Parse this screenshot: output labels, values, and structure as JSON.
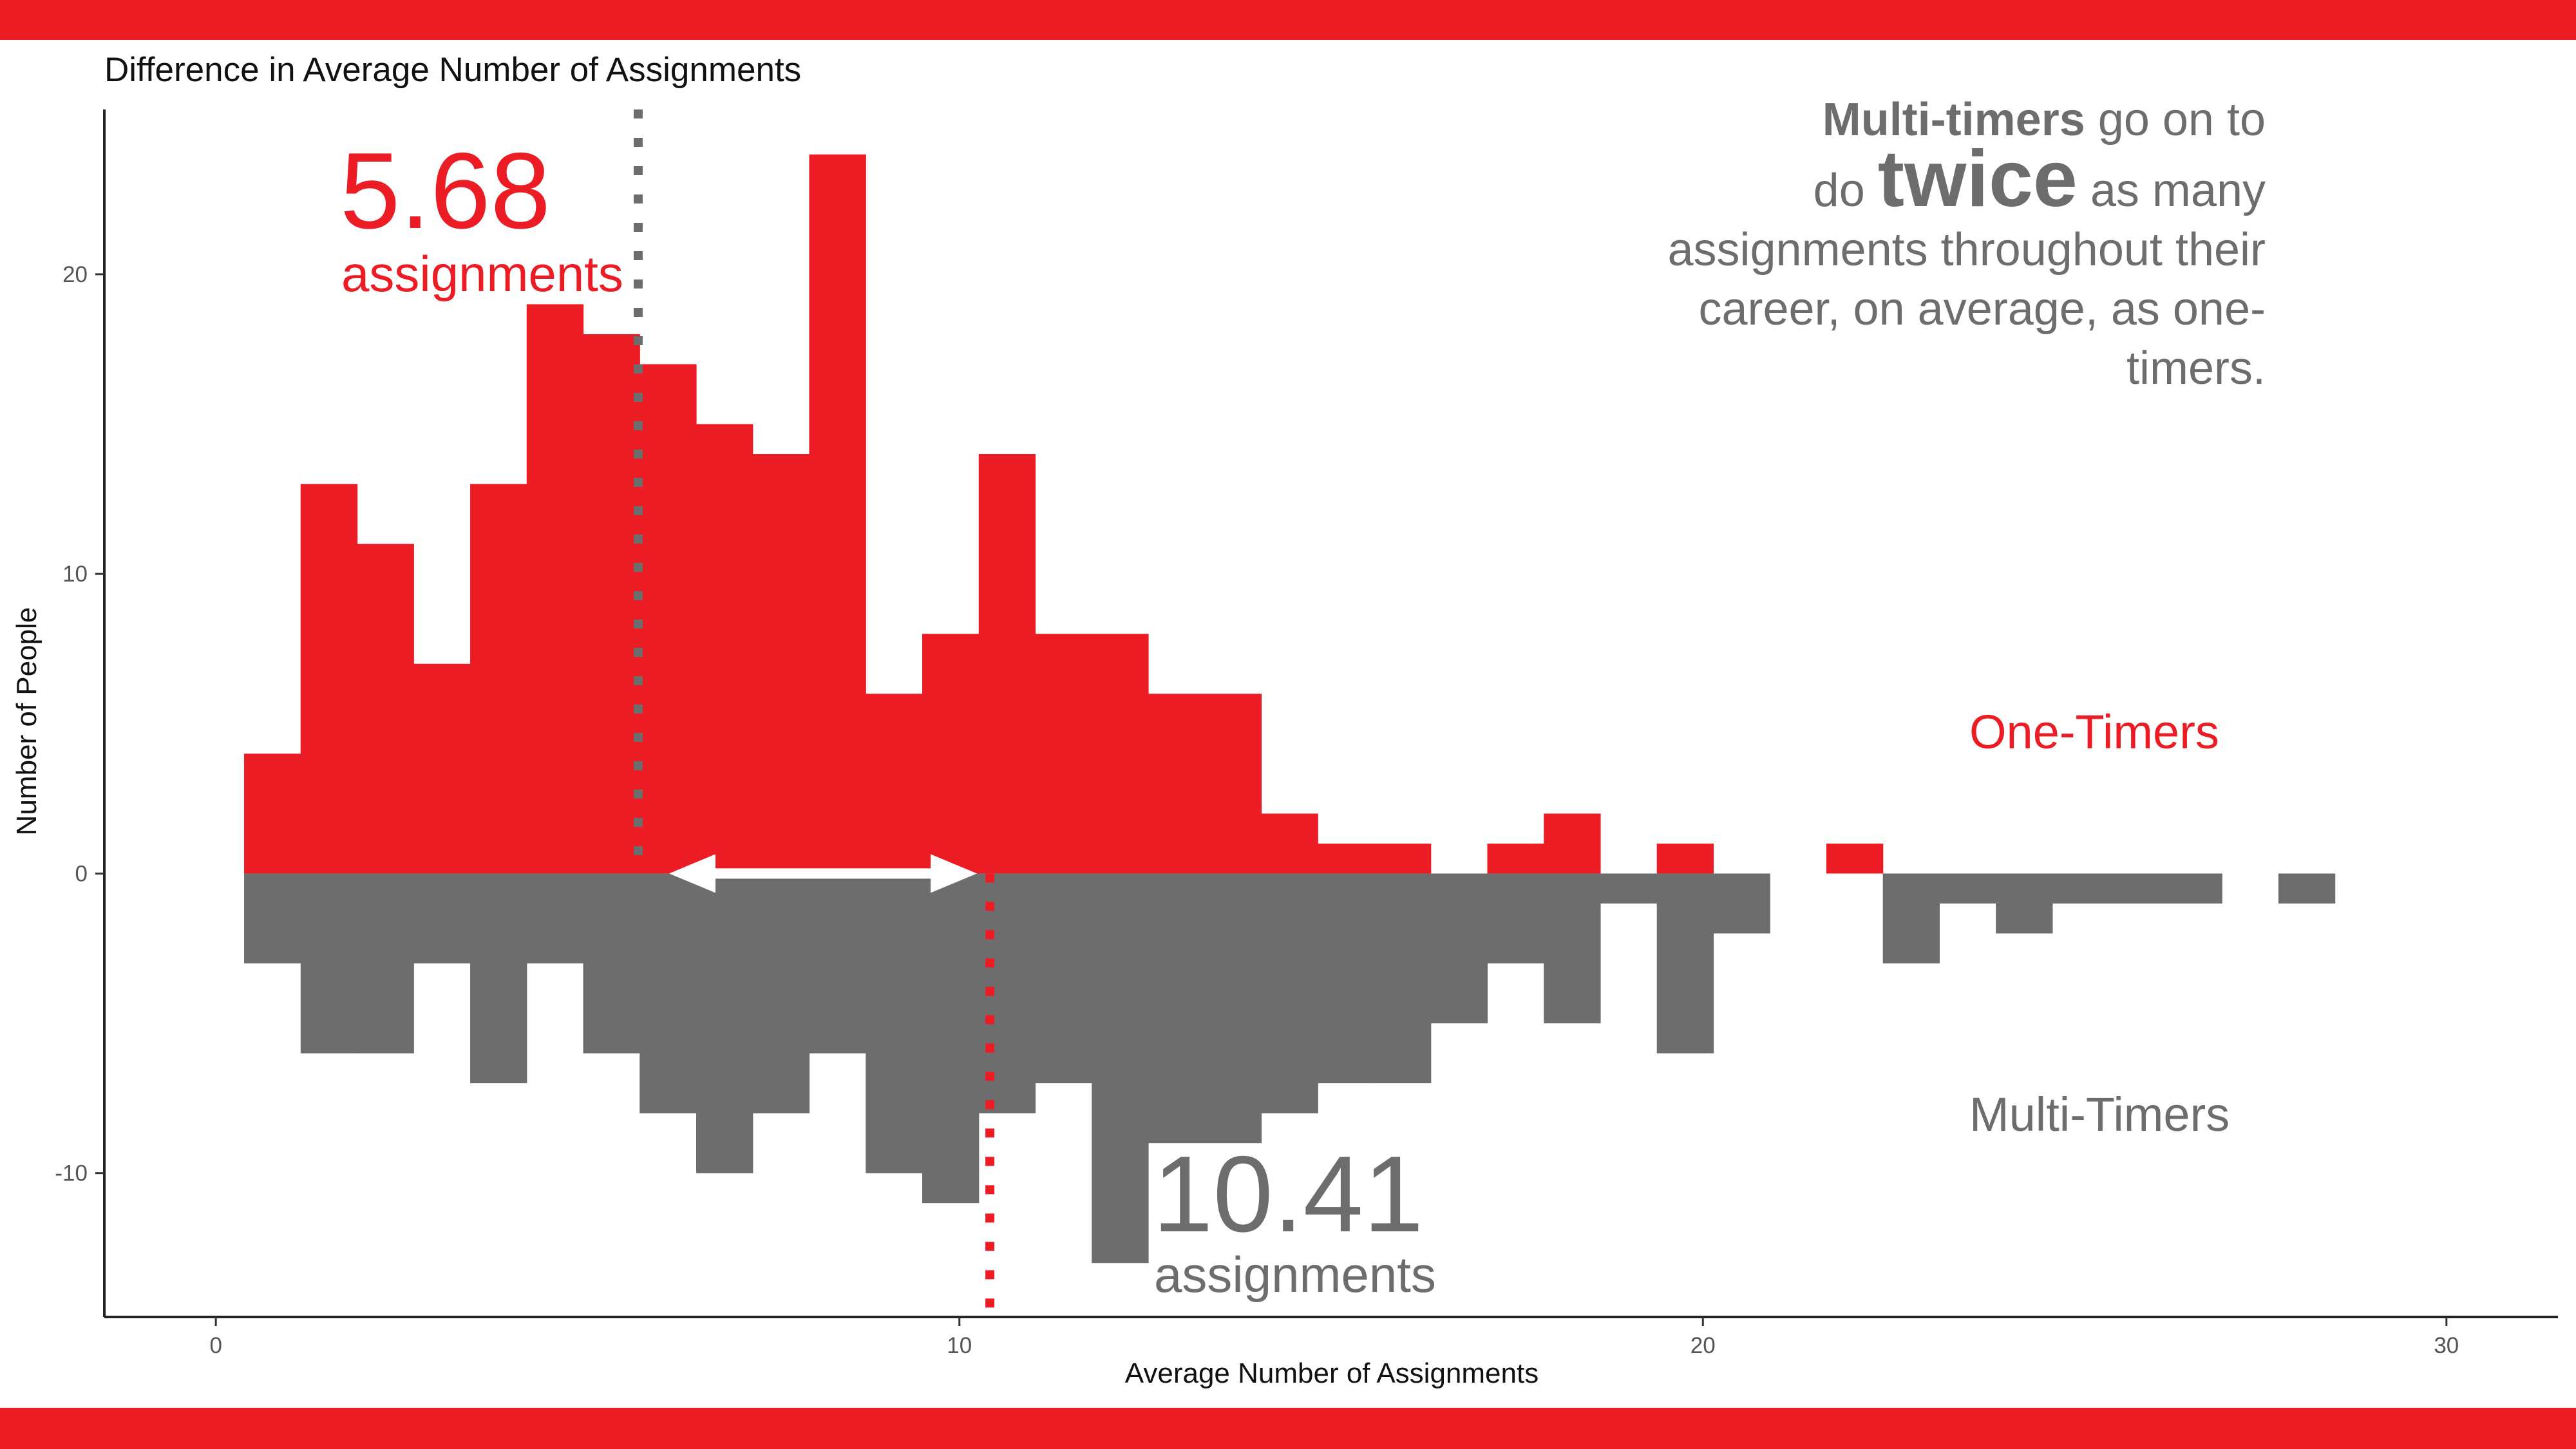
{
  "chart_data": {
    "type": "bar",
    "title": "Difference in Average Number of Assignments",
    "xlabel": "Average Number of Assignments",
    "ylabel": "Number of People",
    "xlim": [
      -1.5,
      31.5
    ],
    "ylim": [
      -14.8,
      25.5
    ],
    "xticks": [
      0,
      10,
      20,
      30
    ],
    "yticks": [
      -10,
      0,
      10,
      20
    ],
    "bin_width": 0.76,
    "bin_start": 0.38,
    "grid": false,
    "series": [
      {
        "name": "One-Timers",
        "color": "#ec1c24",
        "values": [
          4,
          13,
          11,
          7,
          13,
          19,
          18,
          17,
          15,
          14,
          24,
          6,
          8,
          14,
          8,
          8,
          6,
          6,
          2,
          1,
          1,
          0,
          1,
          2,
          0,
          1,
          0,
          0,
          1,
          0,
          0,
          0,
          0,
          0,
          0,
          0,
          0
        ]
      },
      {
        "name": "Multi-Timers",
        "color": "#6d6d6d",
        "values": [
          -3,
          -6,
          -6,
          -3,
          -7,
          -3,
          -6,
          -8,
          -10,
          -8,
          -6,
          -10,
          -11,
          -8,
          -7,
          -13,
          -9,
          -9,
          -8,
          -7,
          -7,
          -5,
          -3,
          -5,
          -1,
          -6,
          -2,
          0,
          0,
          -3,
          -1,
          -2,
          -1,
          -1,
          -1,
          0,
          -1
        ]
      }
    ],
    "reference_lines": [
      {
        "x": 5.68,
        "label_value": "5.68",
        "label_unit": "assignments",
        "color": "#6d6d6d"
      },
      {
        "x": 10.41,
        "label_value": "10.41",
        "label_unit": "assignments",
        "color": "#ec1c24"
      }
    ],
    "annotations": {
      "one_timers_label": "One-Timers",
      "multi_timers_label": "Multi-Timers",
      "note_strong": "Multi-timers",
      "note_part1": " go on to",
      "note_part2": "do ",
      "note_emph": "twice",
      "note_part3": " as many assignments throughout their career, on average, as one-timers."
    }
  },
  "colors": {
    "band": "#ec1c24",
    "one": "#ec1c24",
    "multi": "#6d6d6d",
    "arrow": "#ffffff"
  }
}
